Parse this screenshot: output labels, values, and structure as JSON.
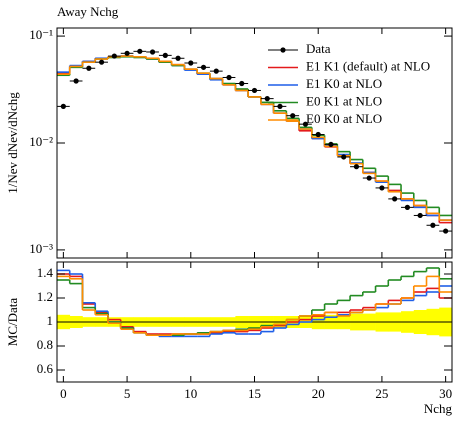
{
  "chart_data": [
    {
      "type": "step",
      "title": "Away Nchg",
      "y_label": "1/Nev dNev/dNchg",
      "log_y": true,
      "legend": "upper right",
      "x": [
        0,
        1,
        2,
        3,
        4,
        5,
        6,
        7,
        8,
        9,
        10,
        11,
        12,
        13,
        14,
        15,
        16,
        17,
        18,
        19,
        20,
        21,
        22,
        23,
        24,
        25,
        26,
        27,
        28,
        29,
        30
      ],
      "xlim": [
        -0.5,
        30.5
      ],
      "xticks": [
        0,
        5,
        10,
        15,
        20,
        25,
        30
      ],
      "ylim": [
        0.00084,
        0.119
      ],
      "yticks": [
        {
          "value": 0.001,
          "label": "10⁻³"
        },
        {
          "value": 0.01,
          "label": "10⁻²"
        },
        {
          "value": 0.1,
          "label": "10⁻¹"
        }
      ],
      "series": [
        {
          "name": "Data",
          "color": "#000000",
          "marker": "point",
          "values": [
            0.022,
            0.038,
            0.05,
            0.057,
            0.065,
            0.069,
            0.072,
            0.071,
            0.066,
            0.062,
            0.056,
            0.051,
            0.047,
            0.041,
            0.036,
            0.031,
            0.026,
            0.022,
            0.018,
            0.015,
            0.012,
            0.0097,
            0.0074,
            0.006,
            0.0047,
            0.0038,
            0.003,
            0.0025,
            0.0021,
            0.0017,
            0.0015
          ]
        },
        {
          "name": "E1 K1 (default) at NLO",
          "color": "#e41a1c",
          "values": [
            0.045,
            0.052,
            0.058,
            0.062,
            0.064,
            0.065,
            0.064,
            0.062,
            0.058,
            0.054,
            0.049,
            0.044,
            0.04,
            0.035,
            0.031,
            0.027,
            0.023,
            0.019,
            0.016,
            0.013,
            0.011,
            0.0092,
            0.0077,
            0.0064,
            0.0053,
            0.0044,
            0.0036,
            0.003,
            0.0026,
            0.0021,
            0.0018
          ]
        },
        {
          "name": "E1 K0 at NLO",
          "color": "#1f5fe8",
          "values": [
            0.046,
            0.053,
            0.058,
            0.062,
            0.064,
            0.065,
            0.064,
            0.061,
            0.057,
            0.053,
            0.048,
            0.044,
            0.039,
            0.035,
            0.031,
            0.027,
            0.023,
            0.019,
            0.016,
            0.0135,
            0.011,
            0.0094,
            0.0078,
            0.0065,
            0.0053,
            0.0043,
            0.0035,
            0.0029,
            0.0025,
            0.0021,
            0.0019
          ]
        },
        {
          "name": "E0 K1 at NLO",
          "color": "#228b22",
          "values": [
            0.043,
            0.051,
            0.057,
            0.061,
            0.063,
            0.064,
            0.063,
            0.061,
            0.057,
            0.053,
            0.049,
            0.045,
            0.04,
            0.036,
            0.032,
            0.027,
            0.024,
            0.02,
            0.017,
            0.014,
            0.0118,
            0.0098,
            0.0083,
            0.007,
            0.0058,
            0.0049,
            0.0041,
            0.0034,
            0.0029,
            0.0025,
            0.0021
          ]
        },
        {
          "name": "E0 K0 at NLO",
          "color": "#ff8c00",
          "values": [
            0.044,
            0.052,
            0.057,
            0.061,
            0.064,
            0.065,
            0.064,
            0.062,
            0.058,
            0.054,
            0.049,
            0.045,
            0.04,
            0.035,
            0.031,
            0.027,
            0.023,
            0.019,
            0.016,
            0.0135,
            0.0113,
            0.0093,
            0.0076,
            0.0064,
            0.0052,
            0.0044,
            0.0035,
            0.003,
            0.0026,
            0.0022,
            0.0019
          ]
        }
      ]
    },
    {
      "type": "ratio",
      "y_label": "MC/Data",
      "x_label": "Nchg",
      "x": [
        0,
        1,
        2,
        3,
        4,
        5,
        6,
        7,
        8,
        9,
        10,
        11,
        12,
        13,
        14,
        15,
        16,
        17,
        18,
        19,
        20,
        21,
        22,
        23,
        24,
        25,
        26,
        27,
        28,
        29,
        30
      ],
      "xlim": [
        -0.5,
        30.5
      ],
      "xticks": [
        0,
        5,
        10,
        15,
        20,
        25,
        30
      ],
      "ylim": [
        0.5,
        1.5
      ],
      "yticks": [
        0.6,
        0.8,
        1,
        1.2,
        1.4
      ],
      "band_color": "#ffff00",
      "band_errors": [
        0.06,
        0.05,
        0.04,
        0.04,
        0.04,
        0.04,
        0.04,
        0.04,
        0.04,
        0.04,
        0.04,
        0.04,
        0.04,
        0.04,
        0.05,
        0.05,
        0.05,
        0.05,
        0.05,
        0.05,
        0.06,
        0.06,
        0.06,
        0.07,
        0.07,
        0.08,
        0.08,
        0.09,
        0.1,
        0.11,
        0.12
      ],
      "series": [
        {
          "color": "#e41a1c",
          "values": [
            1.4,
            1.38,
            1.15,
            1.08,
            1.02,
            0.96,
            0.92,
            0.9,
            0.9,
            0.9,
            0.9,
            0.9,
            0.91,
            0.92,
            0.92,
            0.93,
            0.95,
            0.97,
            1.0,
            1.02,
            1.05,
            1.08,
            1.08,
            1.1,
            1.12,
            1.15,
            1.18,
            1.2,
            1.25,
            1.28,
            1.2
          ]
        },
        {
          "color": "#1f5fe8",
          "values": [
            1.43,
            1.4,
            1.16,
            1.09,
            1.0,
            0.95,
            0.91,
            0.89,
            0.88,
            0.88,
            0.88,
            0.88,
            0.9,
            0.91,
            0.9,
            0.9,
            0.92,
            0.95,
            0.98,
            1.0,
            1.02,
            1.04,
            1.06,
            1.08,
            1.1,
            1.12,
            1.15,
            1.18,
            1.22,
            1.25,
            1.3
          ]
        },
        {
          "color": "#228b22",
          "values": [
            1.35,
            1.32,
            1.12,
            1.07,
            1.0,
            0.95,
            0.91,
            0.89,
            0.89,
            0.89,
            0.9,
            0.91,
            0.92,
            0.93,
            0.94,
            0.95,
            0.97,
            0.98,
            1.02,
            1.05,
            1.1,
            1.15,
            1.18,
            1.22,
            1.25,
            1.3,
            1.35,
            1.38,
            1.42,
            1.45,
            1.36
          ]
        },
        {
          "color": "#ff8c00",
          "values": [
            1.38,
            1.36,
            1.1,
            1.06,
            0.99,
            0.94,
            0.91,
            0.89,
            0.89,
            0.9,
            0.9,
            0.9,
            0.92,
            0.93,
            0.93,
            0.94,
            0.96,
            0.98,
            1.02,
            1.05,
            1.06,
            1.08,
            1.05,
            1.08,
            1.1,
            1.15,
            1.15,
            1.2,
            1.3,
            1.38,
            1.25
          ]
        }
      ]
    }
  ]
}
